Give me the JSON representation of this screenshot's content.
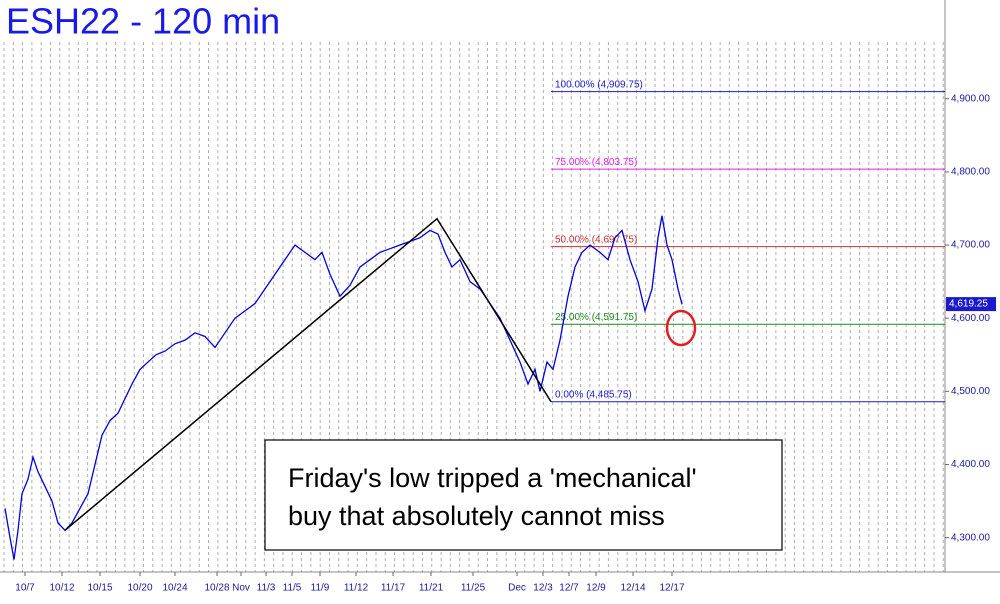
{
  "chart_data": {
    "type": "line",
    "title": "ESH22 - 120 min",
    "annotation": [
      "Friday's low tripped a 'mechanical'",
      "buy that absolutely cannot miss"
    ],
    "color": "#0000e0",
    "x": [
      5,
      10,
      14,
      18,
      22,
      28,
      33,
      38,
      45,
      52,
      58,
      65,
      72,
      80,
      88,
      95,
      102,
      110,
      118,
      125,
      132,
      140,
      148,
      156,
      165,
      175,
      185,
      195,
      205,
      215,
      225,
      235,
      245,
      255,
      265,
      275,
      285,
      295,
      305,
      315,
      322,
      330,
      340,
      350,
      360,
      370,
      380,
      390,
      400,
      410,
      420,
      430,
      438,
      445,
      452,
      460,
      470,
      480,
      490,
      500,
      510,
      520,
      528,
      535,
      540,
      547,
      553,
      560,
      568,
      575,
      582,
      590,
      600,
      608,
      615,
      622,
      630,
      638,
      645,
      652,
      658,
      662,
      667,
      672,
      678,
      682
    ],
    "values": [
      4340,
      4300,
      4270,
      4310,
      4360,
      4380,
      4410,
      4390,
      4370,
      4350,
      4320,
      4310,
      4320,
      4340,
      4360,
      4400,
      4440,
      4460,
      4470,
      4490,
      4510,
      4530,
      4540,
      4550,
      4555,
      4565,
      4570,
      4580,
      4575,
      4560,
      4580,
      4600,
      4610,
      4620,
      4640,
      4660,
      4680,
      4700,
      4690,
      4680,
      4690,
      4660,
      4630,
      4645,
      4670,
      4680,
      4690,
      4695,
      4700,
      4705,
      4710,
      4720,
      4715,
      4690,
      4670,
      4680,
      4650,
      4640,
      4620,
      4600,
      4570,
      4540,
      4510,
      4530,
      4500,
      4540,
      4530,
      4570,
      4630,
      4670,
      4690,
      4700,
      4690,
      4680,
      4710,
      4720,
      4680,
      4650,
      4610,
      4640,
      4710,
      4740,
      4700,
      4680,
      4640,
      4619
    ],
    "trendline": {
      "x": [
        65,
        437,
        551
      ],
      "values": [
        4310,
        4736,
        4485.75
      ],
      "color": "#000000"
    },
    "fib_levels": [
      {
        "label": "100.00% (4,909.75)",
        "value": 4909.75,
        "color": "#1a1acc"
      },
      {
        "label": "75.00% (4,803.75)",
        "value": 4803.75,
        "color": "#e020e0"
      },
      {
        "label": "50.00% (4,697.75)",
        "value": 4697.75,
        "color": "#cc3030"
      },
      {
        "label": "25.00% (4,591.75)",
        "value": 4591.75,
        "color": "#1a8a1a"
      },
      {
        "label": "0.00% (4,485.75)",
        "value": 4485.75,
        "color": "#1a1acc"
      }
    ],
    "fib_start": 551,
    "last_price": {
      "value": 4619.25,
      "label": "4,619.25"
    },
    "xlim": [
      0,
      945
    ],
    "ylim": [
      4253,
      5035
    ],
    "xticks": [
      {
        "value": 25,
        "label": "10/7"
      },
      {
        "value": 62,
        "label": "10/12"
      },
      {
        "value": 100,
        "label": "10/15"
      },
      {
        "value": 140,
        "label": "10/20"
      },
      {
        "value": 175,
        "label": "10/24"
      },
      {
        "value": 217,
        "label": "10/28"
      },
      {
        "value": 241,
        "label": "Nov"
      },
      {
        "value": 266,
        "label": "11/3"
      },
      {
        "value": 292,
        "label": "11/5"
      },
      {
        "value": 320,
        "label": "11/9"
      },
      {
        "value": 356,
        "label": "11/12"
      },
      {
        "value": 393,
        "label": "11/17"
      },
      {
        "value": 431,
        "label": "11/21"
      },
      {
        "value": 473,
        "label": "11/25"
      },
      {
        "value": 517,
        "label": "Dec"
      },
      {
        "value": 543,
        "label": "12/3"
      },
      {
        "value": 569,
        "label": "12/7"
      },
      {
        "value": 596,
        "label": "12/9"
      },
      {
        "value": 633,
        "label": "12/14"
      },
      {
        "value": 672,
        "label": "12/17"
      }
    ],
    "yticks": [
      {
        "value": 4300,
        "label": "4,300.00"
      },
      {
        "value": 4400,
        "label": "4,400.00"
      },
      {
        "value": 4500,
        "label": "4,500.00"
      },
      {
        "value": 4600,
        "label": "4,600.00"
      },
      {
        "value": 4700,
        "label": "4,700.00"
      },
      {
        "value": 4800,
        "label": "4,800.00"
      },
      {
        "value": 4900,
        "label": "4,900.00"
      }
    ]
  }
}
